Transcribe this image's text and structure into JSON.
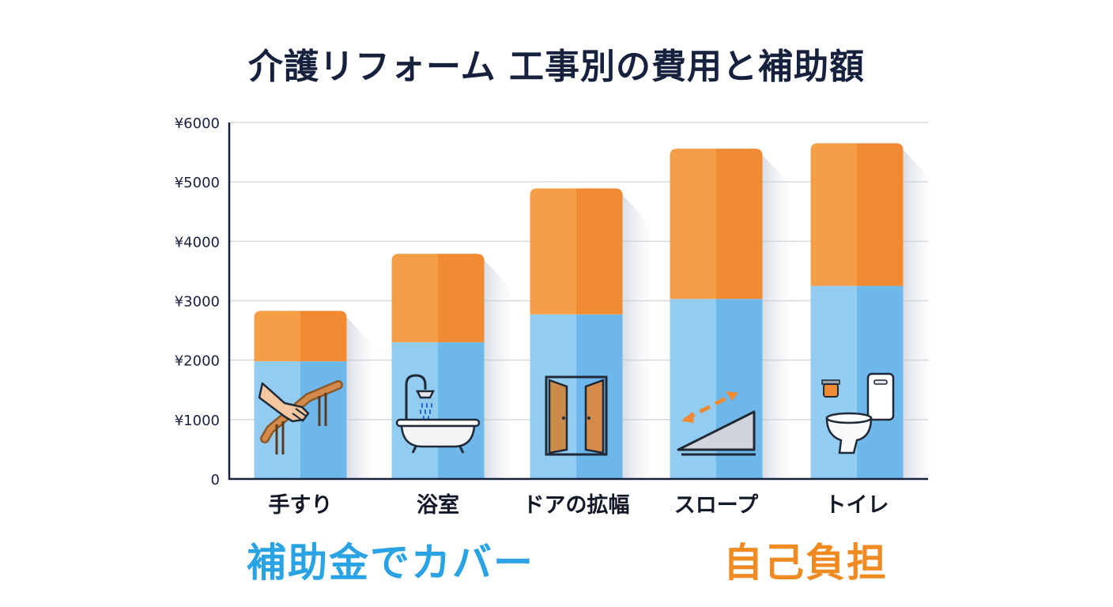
{
  "title": "介護リフォーム 工事別の費用と補助額",
  "legend": {
    "subsidy_label": "補助金でカバー",
    "self_label": "自己負担"
  },
  "colors": {
    "subsidy": "#6db7ea",
    "subsidy_light": "#92cdf1",
    "self_pay": "#f08a33",
    "self_pay_light": "#f59e48",
    "subsidy_text": "#29a3e3",
    "self_text": "#f08a22",
    "axis": "#16213e",
    "grid": "#d6d9de"
  },
  "chart_data": {
    "type": "bar",
    "stacked": true,
    "categories": [
      "手すり",
      "浴室",
      "ドアの拡幅",
      "スロープ",
      "トイレ"
    ],
    "icons": [
      "handrail-icon",
      "shower-bathtub-icon",
      "wide-door-icon",
      "ramp-icon",
      "toilet-icon"
    ],
    "series": [
      {
        "name": "補助金でカバー",
        "values": [
          1980,
          2300,
          2770,
          3030,
          3250
        ]
      },
      {
        "name": "自己負担",
        "values": [
          850,
          1490,
          2120,
          2530,
          2400
        ]
      }
    ],
    "yticks": [
      "0",
      "¥1000",
      "¥2000",
      "¥3000",
      "¥4000",
      "¥5000",
      "¥6000"
    ],
    "ylim": [
      0,
      6000
    ],
    "grid": true,
    "legend_position": "bottom"
  }
}
